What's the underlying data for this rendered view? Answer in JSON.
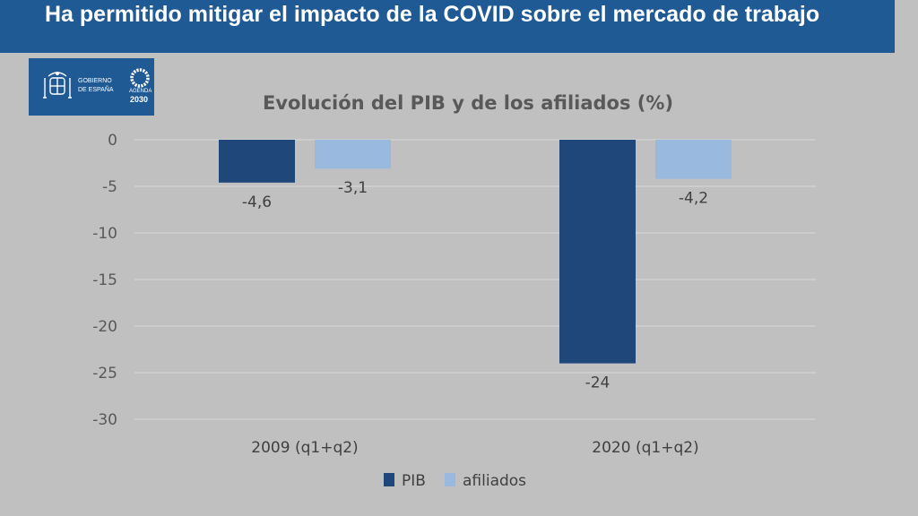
{
  "header": {
    "title": "Ha permitido mitigar el impacto de la COVID sobre el mercado de trabajo"
  },
  "logo": {
    "gov_line1": "GOBIERNO",
    "gov_line2": "DE ESPAÑA",
    "agenda_line1": "AGENDA",
    "agenda_line2": "2030"
  },
  "colors": {
    "banner": "#1f5a94",
    "background": "#c0c0c0",
    "pib": "#1f477a",
    "afiliados": "#99b9df"
  },
  "chart_data": {
    "type": "bar",
    "title": "Evolución del PIB y de los afiliados (%)",
    "categories": [
      "2009 (q1+q2)",
      "2020 (q1+q2)"
    ],
    "series": [
      {
        "name": "PIB",
        "values": [
          -4.6,
          -24
        ],
        "labels": [
          "-4,6",
          "-24"
        ]
      },
      {
        "name": "afiliados",
        "values": [
          -3.1,
          -4.2
        ],
        "labels": [
          "-3,1",
          "-4,2"
        ]
      }
    ],
    "ylim": [
      -30,
      0
    ],
    "yticks": [
      0,
      -5,
      -10,
      -15,
      -20,
      -25,
      -30
    ],
    "ytick_labels": [
      "0",
      "-5",
      "-10",
      "-15",
      "-20",
      "-25",
      "-30"
    ],
    "grid": true,
    "legend": "bottom"
  }
}
